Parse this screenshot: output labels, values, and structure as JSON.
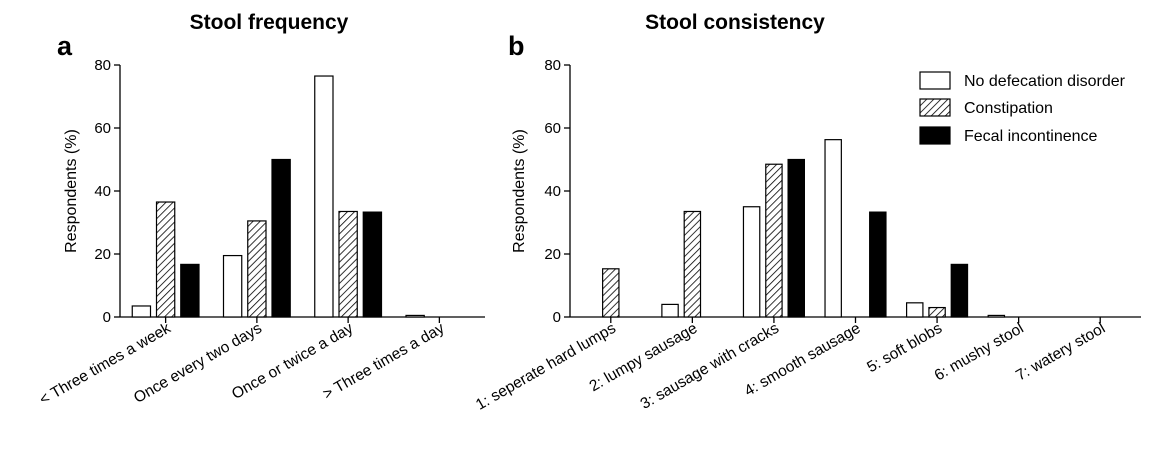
{
  "chart_data": [
    {
      "type": "bar",
      "panel": "a",
      "title": "Stool frequency",
      "ylabel": "Respondents (%)",
      "xlabel": "",
      "ylim": [
        0,
        80
      ],
      "yticks": [
        "0",
        "20",
        "40",
        "60",
        "80"
      ],
      "categories": [
        "< Three times a week",
        "Once every two days",
        "Once or twice a day",
        "> Three times a day"
      ],
      "series": [
        {
          "name": "No defecation disorder",
          "values": [
            3.5,
            19.5,
            76.5,
            0.5
          ]
        },
        {
          "name": "Constipation",
          "values": [
            36.5,
            30.5,
            33.5,
            0
          ]
        },
        {
          "name": "Fecal incontinence",
          "values": [
            16.7,
            50,
            33.3,
            0
          ]
        }
      ]
    },
    {
      "type": "bar",
      "panel": "b",
      "title": "Stool consistency",
      "ylabel": "Respondents (%)",
      "xlabel": "",
      "ylim": [
        0,
        80
      ],
      "yticks": [
        "0",
        "20",
        "40",
        "60",
        "80"
      ],
      "categories": [
        "1: seperate hard lumps",
        "2: lumpy sausage",
        "3: sausage with cracks",
        "4: smooth sausage",
        "5: soft blobs",
        "6: mushy stool",
        "7: watery stool"
      ],
      "series": [
        {
          "name": "No defecation disorder",
          "values": [
            0,
            4,
            35,
            56.3,
            4.5,
            0.5,
            0
          ]
        },
        {
          "name": "Constipation",
          "values": [
            15.3,
            33.5,
            48.5,
            0,
            3,
            0,
            0
          ]
        },
        {
          "name": "Fecal incontinence",
          "values": [
            0,
            0,
            50,
            33.3,
            16.7,
            0,
            0
          ]
        }
      ],
      "legend": {
        "position": "top-right",
        "entries": [
          "No defecation disorder",
          "Constipation",
          "Fecal incontinence"
        ]
      }
    }
  ]
}
